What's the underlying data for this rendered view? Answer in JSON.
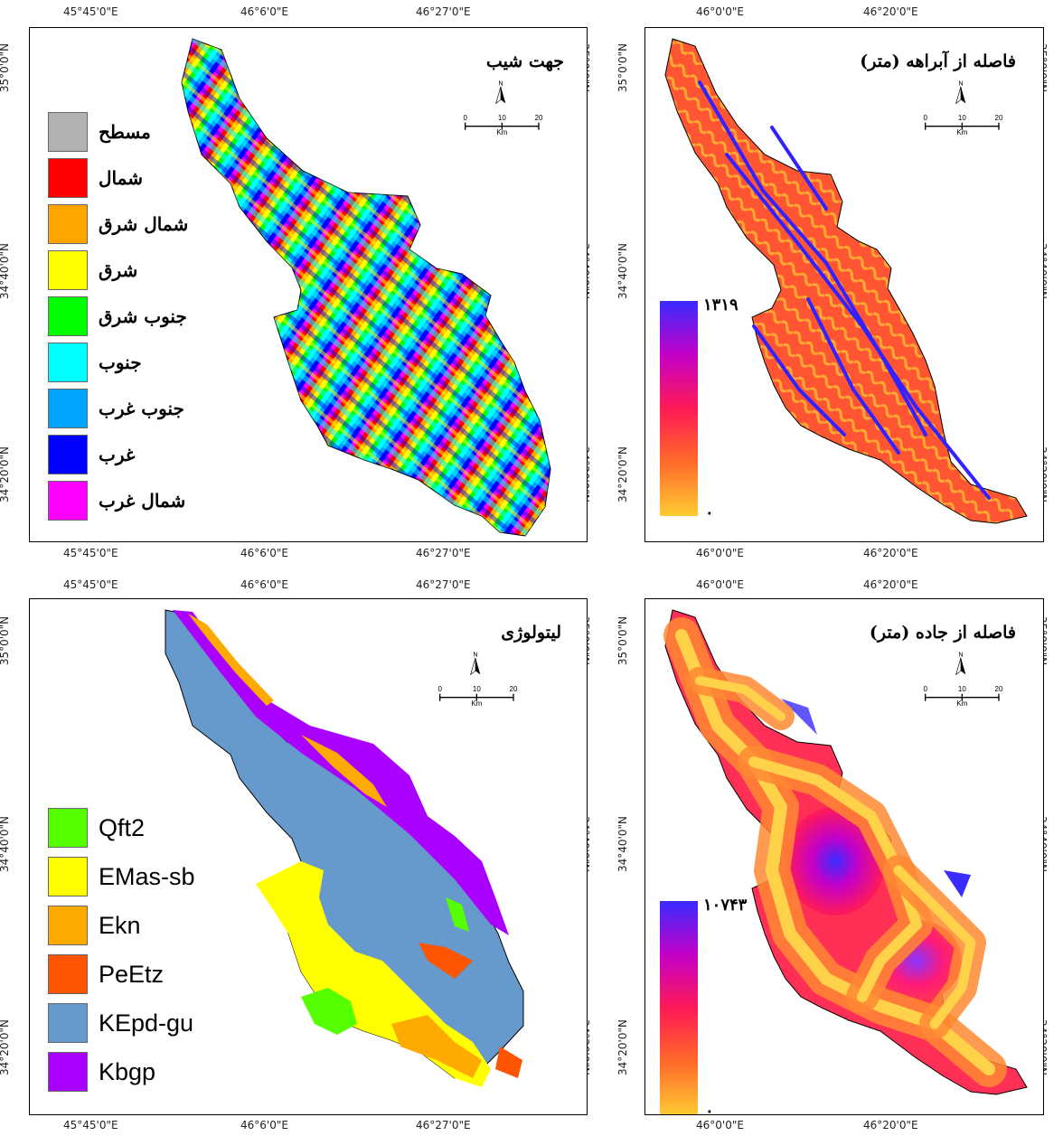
{
  "panels": {
    "aspect": {
      "title": "جهت شیب",
      "top_ticks": [
        "45°45'0\"E",
        "46°6'0\"E",
        "46°27'0\"E"
      ],
      "bottom_ticks": [
        "45°45'0\"E",
        "46°6'0\"E",
        "46°27'0\"E"
      ],
      "left_ticks": [
        "35°0'0\"N",
        "34°40'0\"N",
        "34°20'0\"N"
      ],
      "right_ticks": [
        "35°0'0\"N",
        "34°40'0\"N",
        "34°20'0\"N"
      ],
      "legend": [
        {
          "label": "مسطح",
          "color": "#b2b2b2"
        },
        {
          "label": "شمال",
          "color": "#ff0000"
        },
        {
          "label": "شمال شرق",
          "color": "#ffa500"
        },
        {
          "label": "شرق",
          "color": "#ffff00"
        },
        {
          "label": "جنوب شرق",
          "color": "#00ff00"
        },
        {
          "label": "جنوب",
          "color": "#00ffff"
        },
        {
          "label": "جنوب غرب",
          "color": "#00a5ff"
        },
        {
          "label": "غرب",
          "color": "#0000ff"
        },
        {
          "label": "شمال غرب",
          "color": "#ff00ff"
        }
      ]
    },
    "river": {
      "title": "فاصله از آبراهه (متر)",
      "top_ticks": [
        "46°0'0\"E",
        "46°20'0\"E"
      ],
      "bottom_ticks": [
        "46°0'0\"E",
        "46°20'0\"E"
      ],
      "left_ticks": [
        "35°0'0\"N",
        "34°40'0\"N",
        "34°20'0\"N"
      ],
      "right_ticks": [
        "35°0'0\"N",
        "34°40'0\"N",
        "34°20'0\"N"
      ],
      "max_label": "۱۳۱۹",
      "min_label": "۰"
    },
    "lithology": {
      "title": "لیتولوژی",
      "top_ticks": [
        "45°45'0\"E",
        "46°6'0\"E",
        "46°27'0\"E"
      ],
      "bottom_ticks": [
        "45°45'0\"E",
        "46°6'0\"E",
        "46°27'0\"E"
      ],
      "left_ticks": [
        "35°0'0\"N",
        "34°40'0\"N",
        "34°20'0\"N"
      ],
      "right_ticks": [
        "35°0'0\"N",
        "34°40'0\"N",
        "34°20'0\"N"
      ],
      "legend": [
        {
          "label": "Qft2",
          "color": "#55ff00"
        },
        {
          "label": "EMas-sb",
          "color": "#ffff00"
        },
        {
          "label": "Ekn",
          "color": "#ffaa00"
        },
        {
          "label": "PeEtz",
          "color": "#ff5500"
        },
        {
          "label": "KEpd-gu",
          "color": "#6699cc"
        },
        {
          "label": "Kbgp",
          "color": "#aa00ff"
        }
      ]
    },
    "road": {
      "title": "فاصله از جاده (متر)",
      "top_ticks": [
        "46°0'0\"E",
        "46°20'0\"E"
      ],
      "bottom_ticks": [
        "46°0'0\"E",
        "46°20'0\"E"
      ],
      "left_ticks": [
        "35°0'0\"N",
        "34°40'0\"N",
        "34°20'0\"N"
      ],
      "right_ticks": [
        "35°0'0\"N",
        "34°40'0\"N",
        "34°20'0\"N"
      ],
      "max_label": "۱۰۷۴۳",
      "min_label": "۰"
    }
  },
  "scale": {
    "north": "N",
    "t0": "0",
    "t1": "10",
    "t2": "20",
    "unit": "Km"
  }
}
